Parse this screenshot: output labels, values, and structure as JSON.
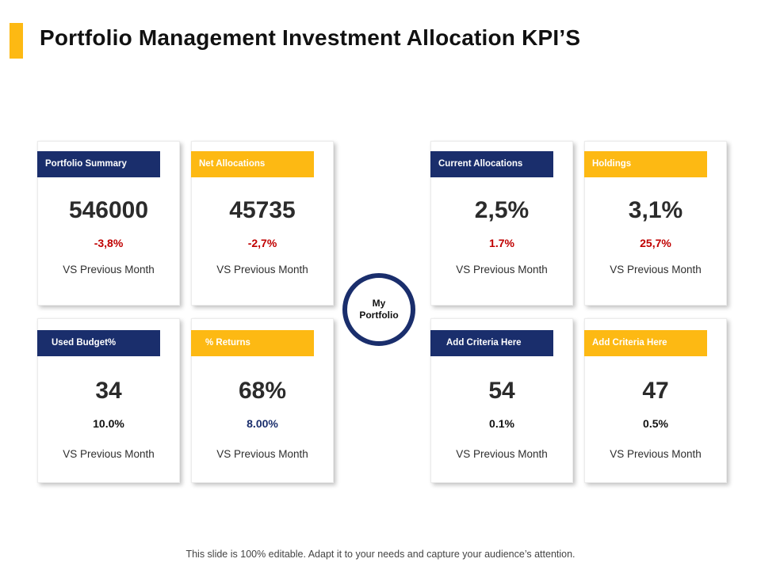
{
  "slide": {
    "title": "Portfolio Management Investment Allocation KPI’S",
    "center_label": "My Portfolio",
    "footer": "This slide is 100% editable. Adapt it to your needs and capture your audience’s attention."
  },
  "colors": {
    "accent": "#FDB913",
    "navy": "#1A2E6C",
    "negative": "#C00000",
    "positive_blue": "#1A2E6C",
    "neutral": "#111111"
  },
  "cards": [
    {
      "label": "Portfolio Summary",
      "value": "546000",
      "change": "-3,8%",
      "caption": "VS Previous Month",
      "label_color": "navy",
      "change_color": "negative"
    },
    {
      "label": "Net Allocations",
      "value": "45735",
      "change": "-2,7%",
      "caption": "VS Previous Month",
      "label_color": "gold",
      "change_color": "negative"
    },
    {
      "label": "Current Allocations",
      "value": "2,5%",
      "change": "1.7%",
      "caption": "VS Previous Month",
      "label_color": "navy",
      "change_color": "negative"
    },
    {
      "label": "Holdings",
      "value": "3,1%",
      "change": "25,7%",
      "caption": "VS Previous Month",
      "label_color": "gold",
      "change_color": "negative"
    },
    {
      "label": "Used Budget%",
      "value": "34",
      "change": "10.0%",
      "caption": "VS Previous Month",
      "label_color": "navy",
      "change_color": "neutral"
    },
    {
      "label": "% Returns",
      "value": "68%",
      "change": "8.00%",
      "caption": "VS Previous Month",
      "label_color": "gold",
      "change_color": "positive_blue"
    },
    {
      "label": "Add Criteria Here",
      "value": "54",
      "change": "0.1%",
      "caption": "VS Previous Month",
      "label_color": "navy",
      "change_color": "neutral"
    },
    {
      "label": "Add Criteria Here",
      "value": "47",
      "change": "0.5%",
      "caption": "VS Previous Month",
      "label_color": "gold",
      "change_color": "neutral"
    }
  ]
}
